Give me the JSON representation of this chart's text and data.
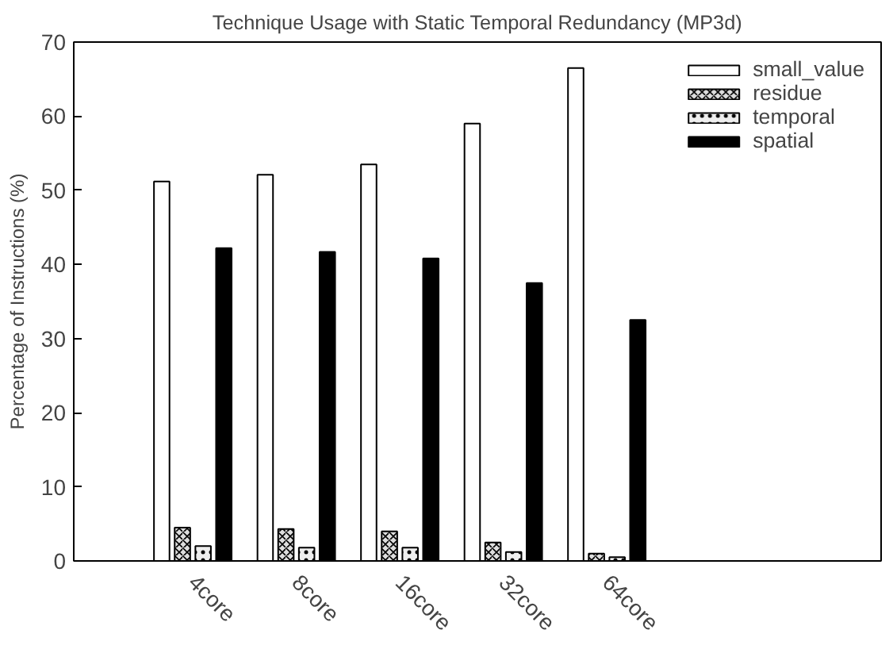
{
  "chart_data": {
    "type": "bar",
    "title": "Technique Usage with Static Temporal Redundancy (MP3d)",
    "ylabel": "Percentage of Instructions (%)",
    "categories": [
      "4core",
      "8core",
      "16core",
      "32core",
      "64core"
    ],
    "series": [
      {
        "name": "small_value",
        "color": "#ffffff",
        "values": [
          51.2,
          52.1,
          53.5,
          59.0,
          66.5
        ]
      },
      {
        "name": "residue",
        "color": "#dddddd",
        "values": [
          4.5,
          4.3,
          4.0,
          2.5,
          1.0
        ]
      },
      {
        "name": "temporal",
        "color": "#eeeeee",
        "values": [
          2.0,
          1.8,
          1.8,
          1.2,
          0.5
        ]
      },
      {
        "name": "spatial",
        "color": "#000000",
        "values": [
          42.2,
          41.7,
          40.8,
          37.5,
          32.5
        ]
      }
    ],
    "ylim": [
      0,
      70
    ],
    "yticks": [
      0,
      10,
      20,
      30,
      40,
      50,
      60,
      70
    ],
    "grid": false,
    "legend": "top right"
  }
}
